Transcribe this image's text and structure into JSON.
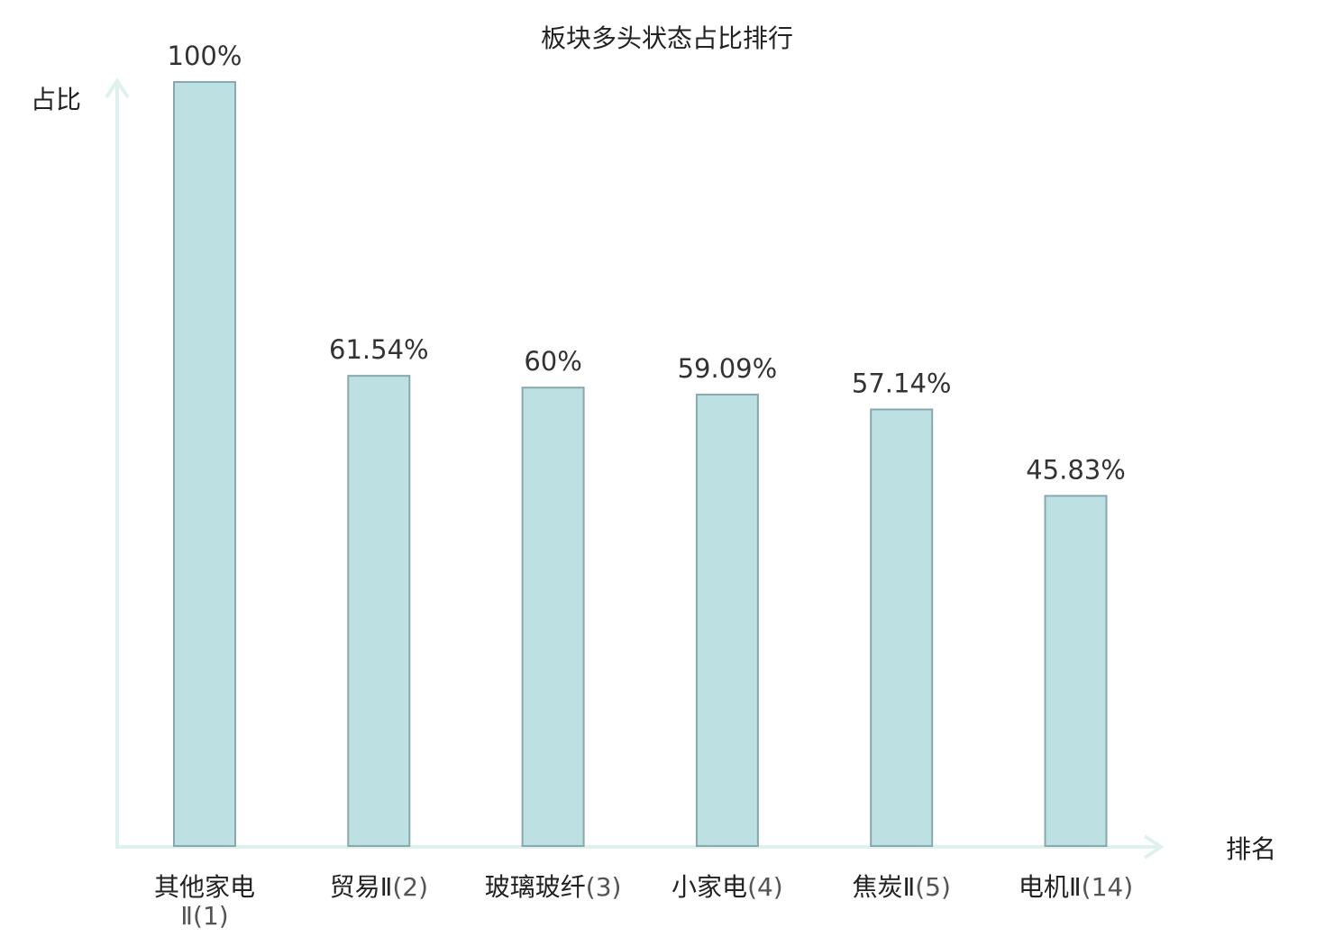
{
  "chart_data": {
    "type": "bar",
    "title": "板块多头状态占比排行",
    "ylabel": "占比",
    "xlabel": "排名",
    "ylim": [
      0,
      100
    ],
    "grid": false,
    "categories": [
      {
        "name": "其他家电Ⅱ",
        "rank": "(1)",
        "highlight": false
      },
      {
        "name": "贸易Ⅱ",
        "rank": "(2)",
        "highlight": false
      },
      {
        "name": "玻璃玻纤",
        "rank": "(3)",
        "highlight": false
      },
      {
        "name": "小家电",
        "rank": "(4)",
        "highlight": false
      },
      {
        "name": "焦炭Ⅱ",
        "rank": "(5)",
        "highlight": false
      },
      {
        "name": "电机Ⅱ",
        "rank": "(14)",
        "highlight": true
      }
    ],
    "values": [
      100,
      61.54,
      60,
      59.09,
      57.14,
      45.83
    ],
    "value_labels": [
      "100%",
      "61.54%",
      "60%",
      "59.09%",
      "57.14%",
      "45.83%"
    ]
  },
  "colors": {
    "bar_fill": "#bde0e2",
    "bar_stroke": "#88a8ab",
    "axis": "#dff1ee",
    "highlight": "#e8191b"
  }
}
